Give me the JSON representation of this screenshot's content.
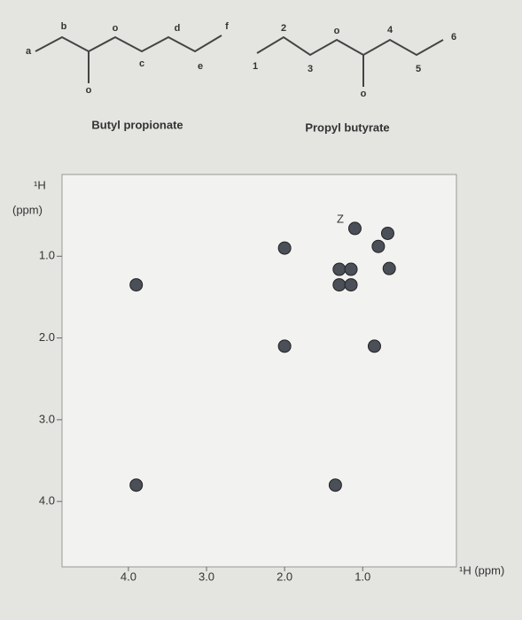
{
  "structures": [
    {
      "name": "Butyl propionate",
      "labels": [
        "a",
        "b",
        "o",
        "o",
        "c",
        "d",
        "e",
        "f"
      ]
    },
    {
      "name": "Propyl butyrate",
      "labels": [
        "1",
        "2",
        "o",
        "3",
        "o",
        "4",
        "5",
        "6"
      ]
    }
  ],
  "chart_data": {
    "type": "scatter",
    "y_label": [
      "¹H",
      "(ppm)"
    ],
    "x_label": "¹H (ppm)",
    "annotation": "Z",
    "x": [
      3.9,
      3.9,
      2.0,
      2.0,
      1.35,
      0.85,
      1.3,
      1.15,
      1.3,
      1.15,
      0.66,
      1.1,
      0.68,
      0.8
    ],
    "y": [
      1.35,
      3.8,
      0.9,
      2.1,
      3.8,
      2.1,
      1.16,
      1.16,
      1.35,
      1.35,
      1.15,
      0.66,
      0.72,
      0.88
    ],
    "color": "#4a4f58",
    "xlim": [
      4.85,
      -0.2
    ],
    "ylim": [
      0,
      4.8
    ],
    "xticks": [
      {
        "value": 4,
        "label": "4.0"
      },
      {
        "value": 3,
        "label": "3.0"
      },
      {
        "value": 2,
        "label": "2.0"
      },
      {
        "value": 1,
        "label": "1.0"
      }
    ],
    "yticks": [
      {
        "value": 1,
        "label": "1.0"
      },
      {
        "value": 2,
        "label": "2.0"
      },
      {
        "value": 3,
        "label": "3.0"
      },
      {
        "value": 4,
        "label": "4.0"
      }
    ]
  }
}
